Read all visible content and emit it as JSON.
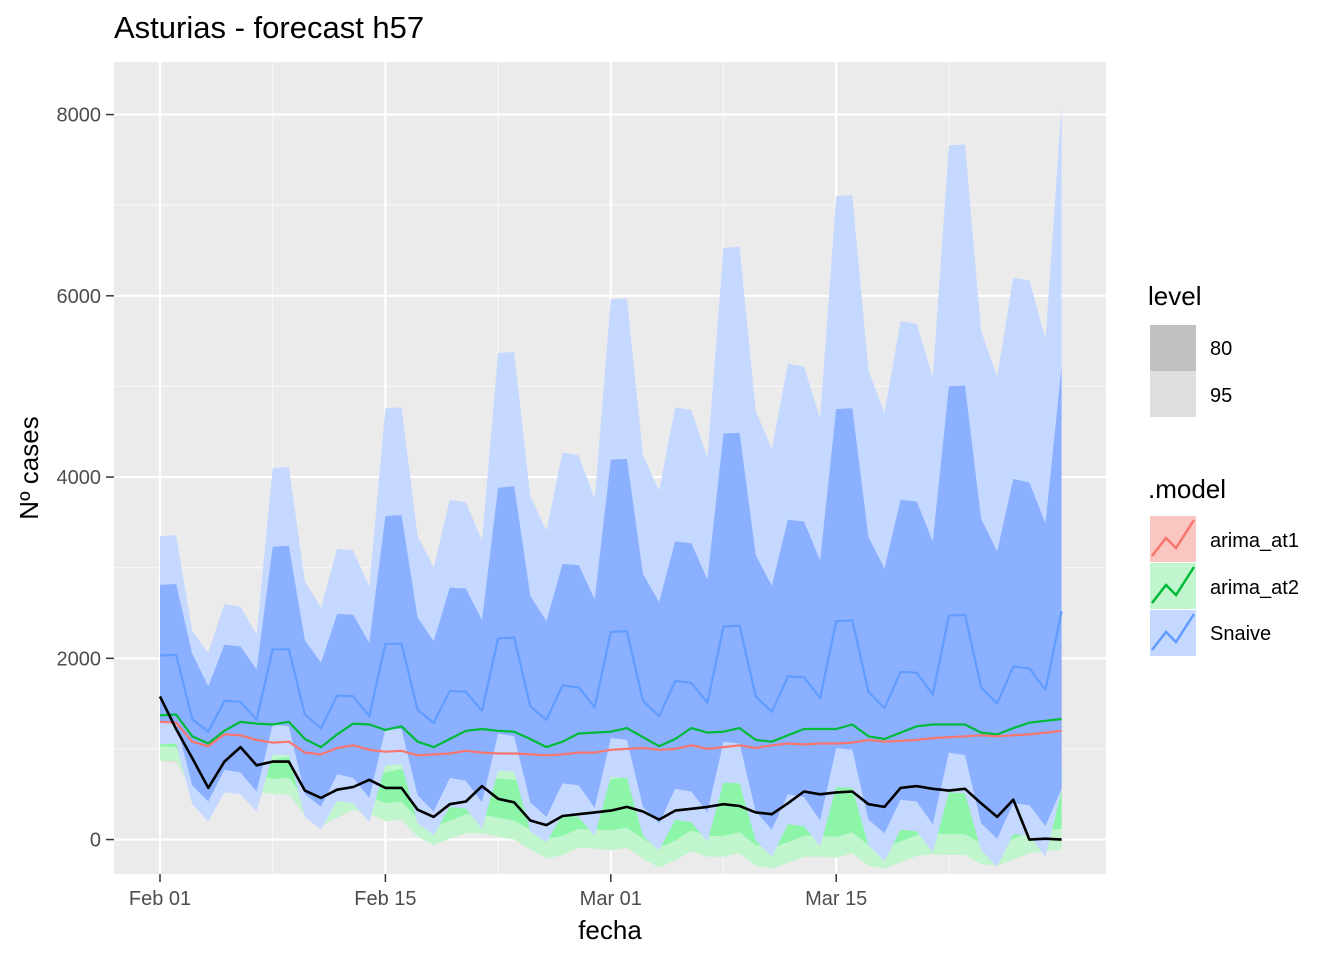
{
  "chart_data": {
    "type": "line",
    "title": "Asturias - forecast h57",
    "xlabel": "fecha",
    "ylabel": "Nº cases",
    "x_start": "2021-02-01",
    "x_ticks": [
      "Feb 01",
      "Feb 15",
      "Mar 01",
      "Mar 15"
    ],
    "y_ticks": [
      "0",
      "2000",
      "4000",
      "6000",
      "8000"
    ],
    "ylim": [
      -380,
      8580
    ],
    "grid": true,
    "legend_position": "right",
    "legends": {
      "level": {
        "title": "level",
        "entries": [
          {
            "label": "80",
            "color": "#c0c0c0"
          },
          {
            "label": "95",
            "color": "#dedede"
          }
        ]
      },
      "model": {
        "title": ".model",
        "entries": [
          {
            "label": "arima_at1",
            "color": "#F8766D",
            "fill": "#f9c6c2"
          },
          {
            "label": "arima_at2",
            "color": "#00BA38",
            "fill": "#c0f5cd"
          },
          {
            "label": "Snaive",
            "color": "#619CFF",
            "fill": "#c5d8ff"
          }
        ]
      }
    },
    "series": [
      {
        "name": "Snaive",
        "color": "#619CFF",
        "values": [
          2030,
          2040,
          1330,
          1190,
          1530,
          1520,
          1320,
          2100,
          2100,
          1380,
          1230,
          1590,
          1580,
          1360,
          2160,
          2160,
          1430,
          1290,
          1640,
          1630,
          1420,
          2220,
          2230,
          1470,
          1320,
          1700,
          1680,
          1460,
          2290,
          2300,
          1530,
          1360,
          1750,
          1730,
          1510,
          2350,
          2360,
          1580,
          1410,
          1800,
          1790,
          1560,
          2410,
          2420,
          1630,
          1450,
          1850,
          1840,
          1600,
          2470,
          2480,
          1680,
          1500,
          1910,
          1890,
          1650,
          2520
        ],
        "lo80": [
          1300,
          1290,
          600,
          420,
          770,
          740,
          530,
          1270,
          1250,
          500,
          360,
          720,
          680,
          460,
          1220,
          1220,
          490,
          310,
          680,
          650,
          410,
          1170,
          1140,
          410,
          250,
          620,
          600,
          350,
          1120,
          1100,
          360,
          180,
          560,
          530,
          300,
          1080,
          1060,
          310,
          110,
          500,
          470,
          210,
          1010,
          990,
          220,
          70,
          440,
          420,
          170,
          960,
          930,
          180,
          10,
          400,
          380,
          150,
          560
        ],
        "hi80": [
          2810,
          2820,
          2050,
          1690,
          2150,
          2130,
          1880,
          3230,
          3240,
          2200,
          1950,
          2490,
          2480,
          2170,
          3570,
          3580,
          2450,
          2190,
          2780,
          2770,
          2420,
          3880,
          3900,
          2690,
          2410,
          3040,
          3030,
          2650,
          4190,
          4200,
          2930,
          2620,
          3290,
          3270,
          2870,
          4480,
          4490,
          3140,
          2800,
          3530,
          3510,
          3080,
          4750,
          4760,
          3340,
          2990,
          3750,
          3730,
          3290,
          5000,
          5010,
          3540,
          3180,
          3980,
          3940,
          3490,
          5220
        ],
        "lo95": [
          1050,
          1060,
          390,
          200,
          520,
          500,
          310,
          940,
          930,
          250,
          110,
          430,
          400,
          190,
          820,
          830,
          180,
          50,
          360,
          340,
          120,
          760,
          750,
          90,
          -30,
          280,
          250,
          40,
          690,
          680,
          40,
          -120,
          220,
          190,
          -20,
          630,
          620,
          -10,
          -190,
          170,
          150,
          -80,
          580,
          570,
          -60,
          -240,
          110,
          90,
          -140,
          520,
          510,
          -120,
          -300,
          60,
          40,
          -190,
          540
        ],
        "hi95": [
          3350,
          3360,
          2300,
          2060,
          2600,
          2570,
          2260,
          4100,
          4110,
          2850,
          2560,
          3210,
          3190,
          2790,
          4760,
          4770,
          3350,
          3000,
          3750,
          3720,
          3300,
          5370,
          5380,
          3790,
          3410,
          4270,
          4240,
          3760,
          5960,
          5970,
          4240,
          3850,
          4770,
          4740,
          4210,
          6530,
          6540,
          4730,
          4310,
          5250,
          5220,
          4650,
          7100,
          7110,
          5180,
          4710,
          5720,
          5690,
          5100,
          7660,
          7670,
          5610,
          5110,
          6200,
          6170,
          5520,
          8100
        ]
      },
      {
        "name": "arima_at2",
        "color": "#00BA38",
        "values": [
          1370,
          1380,
          1140,
          1060,
          1200,
          1300,
          1280,
          1270,
          1300,
          1110,
          1020,
          1160,
          1280,
          1270,
          1210,
          1250,
          1080,
          1020,
          1110,
          1200,
          1220,
          1200,
          1190,
          1110,
          1020,
          1080,
          1170,
          1180,
          1190,
          1230,
          1130,
          1030,
          1110,
          1230,
          1180,
          1190,
          1230,
          1100,
          1080,
          1150,
          1220,
          1220,
          1220,
          1270,
          1140,
          1110,
          1180,
          1250,
          1270,
          1270,
          1270,
          1180,
          1160,
          1230,
          1290,
          1310,
          1330
        ],
        "lo80": [
          1030,
          1020,
          700,
          580,
          700,
          770,
          700,
          670,
          680,
          450,
          330,
          430,
          520,
          480,
          400,
          420,
          230,
          140,
          210,
          280,
          280,
          240,
          210,
          110,
          10,
          40,
          120,
          110,
          100,
          130,
          10,
          -90,
          -10,
          100,
          40,
          40,
          80,
          -60,
          -90,
          -30,
          40,
          40,
          30,
          80,
          -60,
          -90,
          -20,
          50,
          70,
          60,
          60,
          -40,
          -60,
          10,
          80,
          100,
          120
        ],
        "hi80": [
          1070,
          1080,
          770,
          690,
          840,
          930,
          890,
          880,
          910,
          690,
          600,
          700,
          830,
          820,
          740,
          780,
          570,
          500,
          590,
          680,
          690,
          670,
          660,
          570,
          480,
          550,
          640,
          650,
          660,
          700,
          590,
          500,
          580,
          700,
          650,
          660,
          700,
          560,
          540,
          610,
          690,
          690,
          690,
          740,
          610,
          580,
          650,
          720,
          740,
          740,
          740,
          650,
          630,
          700,
          760,
          780,
          800
        ],
        "lo95": [
          870,
          860,
          540,
          420,
          540,
          600,
          530,
          500,
          500,
          270,
          150,
          240,
          330,
          290,
          200,
          220,
          30,
          -60,
          10,
          70,
          70,
          30,
          0,
          -110,
          -210,
          -170,
          -90,
          -100,
          -120,
          -90,
          -210,
          -310,
          -230,
          -130,
          -190,
          -190,
          -150,
          -290,
          -320,
          -260,
          -190,
          -190,
          -200,
          -150,
          -290,
          -320,
          -250,
          -180,
          -160,
          -170,
          -170,
          -270,
          -290,
          -220,
          -150,
          -130,
          -110
        ],
        "hi95": [
          1120,
          1130,
          830,
          760,
          920,
          1020,
          990,
          990,
          1030,
          830,
          750,
          860,
          990,
          990,
          920,
          970,
          770,
          700,
          800,
          890,
          910,
          890,
          890,
          800,
          720,
          790,
          880,
          900,
          920,
          960,
          850,
          770,
          850,
          980,
          940,
          950,
          990,
          860,
          840,
          910,
          990,
          1000,
          1000,
          1050,
          930,
          900,
          980,
          1050,
          1080,
          1080,
          1080,
          1000,
          980,
          1050,
          1120,
          1140,
          1160
        ]
      },
      {
        "name": "arima_at1",
        "color": "#F8766D",
        "values": [
          1300,
          1290,
          1080,
          1030,
          1160,
          1150,
          1100,
          1070,
          1080,
          960,
          940,
          1010,
          1040,
          990,
          970,
          980,
          930,
          940,
          950,
          980,
          960,
          950,
          950,
          940,
          930,
          940,
          960,
          960,
          990,
          1000,
          1010,
          990,
          1000,
          1040,
          1000,
          1020,
          1040,
          1010,
          1040,
          1060,
          1050,
          1060,
          1060,
          1070,
          1100,
          1080,
          1090,
          1100,
          1120,
          1130,
          1140,
          1150,
          1140,
          1150,
          1160,
          1180,
          1200
        ],
        "lo80": [
          930,
          910,
          690,
          640,
          750,
          730,
          670,
          630,
          630,
          500,
          470,
          530,
          560,
          500,
          470,
          470,
          410,
          410,
          420,
          440,
          410,
          400,
          390,
          370,
          360,
          360,
          370,
          370,
          390,
          390,
          390,
          370,
          370,
          400,
          360,
          370,
          380,
          340,
          370,
          380,
          370,
          370,
          370,
          370,
          390,
          370,
          380,
          380,
          390,
          400,
          400,
          410,
          390,
          400,
          410,
          420,
          440
        ],
        "hi80": [
          1670,
          1670,
          1470,
          1420,
          1570,
          1570,
          1530,
          1510,
          1530,
          1420,
          1410,
          1490,
          1520,
          1480,
          1470,
          1490,
          1450,
          1470,
          1480,
          1520,
          1510,
          1500,
          1510,
          1510,
          1500,
          1520,
          1550,
          1550,
          1590,
          1610,
          1630,
          1610,
          1630,
          1680,
          1640,
          1670,
          1700,
          1680,
          1710,
          1740,
          1730,
          1750,
          1750,
          1770,
          1810,
          1790,
          1800,
          1820,
          1850,
          1860,
          1880,
          1890,
          1890,
          1900,
          1910,
          1940,
          1960
        ],
        "lo95": [
          870,
          850,
          630,
          580,
          680,
          660,
          590,
          550,
          550,
          410,
          380,
          430,
          460,
          400,
          370,
          360,
          290,
          290,
          300,
          320,
          290,
          280,
          260,
          240,
          220,
          220,
          230,
          230,
          240,
          240,
          240,
          220,
          220,
          240,
          200,
          210,
          220,
          180,
          200,
          210,
          200,
          200,
          190,
          190,
          210,
          190,
          190,
          190,
          200,
          200,
          200,
          210,
          190,
          190,
          200,
          210,
          220
        ],
        "hi95": [
          1730,
          1730,
          1530,
          1480,
          1640,
          1640,
          1610,
          1590,
          1610,
          1510,
          1500,
          1590,
          1620,
          1580,
          1570,
          1600,
          1570,
          1590,
          1600,
          1640,
          1630,
          1620,
          1640,
          1640,
          1640,
          1660,
          1690,
          1690,
          1740,
          1760,
          1780,
          1760,
          1780,
          1840,
          1800,
          1830,
          1860,
          1840,
          1880,
          1910,
          1900,
          1920,
          1930,
          1950,
          1990,
          1970,
          1990,
          2010,
          2040,
          2060,
          2080,
          2090,
          2090,
          2110,
          2120,
          2150,
          2180
        ]
      },
      {
        "name": "",
        "color": "#000000",
        "values": [
          1580,
          1220,
          900,
          570,
          860,
          1020,
          820,
          860,
          860,
          540,
          460,
          550,
          580,
          660,
          570,
          570,
          330,
          250,
          390,
          420,
          590,
          450,
          410,
          210,
          160,
          260,
          280,
          300,
          320,
          360,
          310,
          220,
          320,
          340,
          360,
          390,
          370,
          300,
          280,
          400,
          530,
          500,
          520,
          530,
          390,
          360,
          570,
          590,
          560,
          540,
          560,
          400,
          250,
          440,
          0,
          10,
          0
        ]
      }
    ]
  }
}
